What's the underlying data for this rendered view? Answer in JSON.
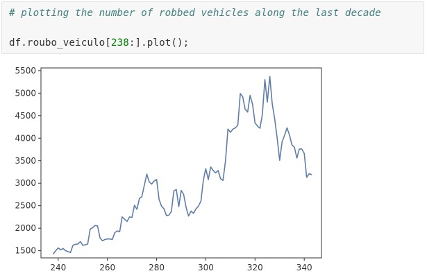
{
  "cell": {
    "comment": "# plotting the number of robbed vehicles along the last decade",
    "code_prefix": "df.roubo_veiculo[",
    "code_number": "238",
    "code_suffix": ":].plot();"
  },
  "chart_data": {
    "type": "line",
    "title": "",
    "xlabel": "",
    "ylabel": "",
    "xlim": [
      233,
      347
    ],
    "ylim": [
      1340,
      5560
    ],
    "x_ticks": [
      240,
      260,
      280,
      300,
      320,
      340
    ],
    "y_ticks": [
      1500,
      2000,
      2500,
      3000,
      3500,
      4000,
      4500,
      5000,
      5500
    ],
    "grid": false,
    "line_color": "#5e7ea8",
    "series": [
      {
        "x": [
          238,
          239,
          240,
          241,
          242,
          243,
          244,
          245,
          246,
          247,
          248,
          249,
          250,
          251,
          252,
          253,
          254,
          255,
          256,
          257,
          258,
          259,
          260,
          261,
          262,
          263,
          264,
          265,
          266,
          267,
          268,
          269,
          270,
          271,
          272,
          273,
          274,
          275,
          276,
          277,
          278,
          279,
          280,
          281,
          282,
          283,
          284,
          285,
          286,
          287,
          288,
          289,
          290,
          291,
          292,
          293,
          294,
          295,
          296,
          297,
          298,
          299,
          300,
          301,
          302,
          303,
          304,
          305,
          306,
          307,
          308,
          309,
          310,
          311,
          312,
          313,
          314,
          315,
          316,
          317,
          318,
          319,
          320,
          321,
          322,
          323,
          324,
          325,
          326,
          327,
          328,
          329,
          330,
          331,
          332,
          333,
          334,
          335,
          336,
          337,
          338,
          339,
          340,
          341,
          342,
          343
        ],
        "values": [
          1430,
          1500,
          1560,
          1520,
          1550,
          1500,
          1480,
          1460,
          1620,
          1640,
          1650,
          1700,
          1620,
          1630,
          1650,
          1980,
          2010,
          2060,
          2050,
          1780,
          1720,
          1750,
          1760,
          1760,
          1750,
          1900,
          1940,
          1920,
          2250,
          2200,
          2150,
          2250,
          2240,
          2510,
          2420,
          2660,
          2700,
          2950,
          3200,
          3030,
          2980,
          3050,
          3080,
          2640,
          2490,
          2430,
          2280,
          2290,
          2370,
          2830,
          2860,
          2480,
          2840,
          2750,
          2460,
          2270,
          2380,
          2330,
          2430,
          2490,
          2600,
          3070,
          3320,
          3080,
          3360,
          3280,
          3230,
          3280,
          3100,
          3060,
          3500,
          4200,
          4130,
          4200,
          4230,
          4290,
          4990,
          4920,
          4640,
          4580,
          4950,
          4750,
          4340,
          4270,
          4220,
          4530,
          5300,
          4800,
          5370,
          4760,
          4420,
          4000,
          3510,
          3920,
          4060,
          4230,
          4070,
          3850,
          3800,
          3560,
          3760,
          3760,
          3660,
          3130,
          3210,
          3190
        ]
      }
    ]
  }
}
